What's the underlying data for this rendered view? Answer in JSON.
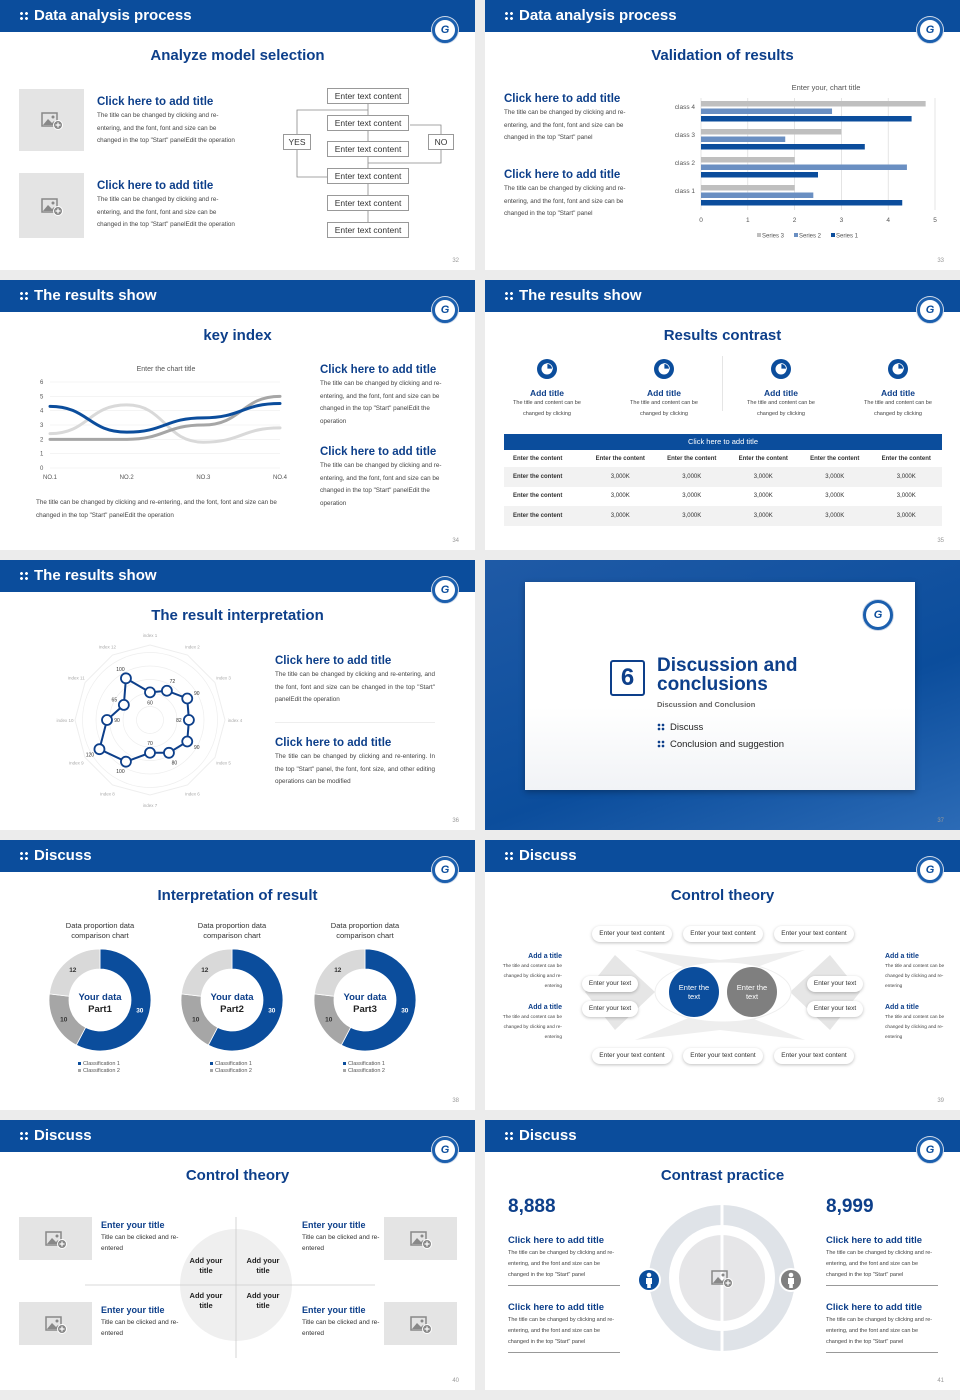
{
  "colors": {
    "brand": "#0b4d9c",
    "title": "#0d3f8a",
    "gray": "#bfbfbf",
    "midgray": "#8a8a8a",
    "series2": "#6a8fc2"
  },
  "logo_text": "G",
  "slides": [
    {
      "header": "Data analysis process",
      "title": "Analyze model selection",
      "page": "32",
      "items": [
        {
          "title": "Click here to add title",
          "text": "The title can be changed by clicking and re-entering, and the font, font and size can be changed in the top \"Start\" panelEdit the operation"
        },
        {
          "title": "Click here to add title",
          "text": "The title can be changed by clicking and re-entering, and the font, font and size can be changed in the top \"Start\" panelEdit the operation"
        }
      ],
      "flow": {
        "boxes": [
          "Enter text content",
          "Enter text content",
          "Enter text content",
          "Enter text content",
          "Enter text content",
          "Enter text content"
        ],
        "yes": "YES",
        "no": "NO"
      }
    },
    {
      "header": "Data analysis process",
      "title": "Validation of results",
      "page": "33",
      "items": [
        {
          "title": "Click here to add title",
          "text": "The title can be changed by clicking and re-entering, and the font, font and size can be changed in the top \"Start\" panel"
        },
        {
          "title": "Click here to add title",
          "text": "The title can be changed by clicking and re-entering, and the font, font and size can be changed in the top \"Start\" panel"
        }
      ]
    },
    {
      "header": "The results show",
      "title": "key index",
      "page": "34",
      "caption": "The title can be changed by clicking and re-entering, and the font, font and size can be changed in the top \"Start\" panelEdit the operation",
      "items": [
        {
          "title": "Click here to add title",
          "text": "The title can be changed by clicking and re-entering, and the font, font and size can be changed in the top \"Start\" panelEdit the operation"
        },
        {
          "title": "Click here to add title",
          "text": "The title can be changed by clicking and re-entering, and the font, font and size can be changed in the top \"Start\" panelEdit the operation"
        }
      ]
    },
    {
      "header": "The results show",
      "title": "Results contrast",
      "page": "35",
      "features": [
        {
          "title": "Add title",
          "text": "The title and content can be changed by clicking"
        },
        {
          "title": "Add title",
          "text": "The title and content can be changed by clicking"
        },
        {
          "title": "Add title",
          "text": "The title and content can be changed by clicking"
        },
        {
          "title": "Add title",
          "text": "The title and content can be changed by clicking"
        }
      ],
      "table": {
        "title": "Click here to add title",
        "header": [
          "Enter the content",
          "Enter the content",
          "Enter the content",
          "Enter the content",
          "Enter the content",
          "Enter the content"
        ],
        "rows": [
          [
            "Enter the content",
            "3,000K",
            "3,000K",
            "3,000K",
            "3,000K",
            "3,000K"
          ],
          [
            "Enter the content",
            "3,000K",
            "3,000K",
            "3,000K",
            "3,000K",
            "3,000K"
          ],
          [
            "Enter the content",
            "3,000K",
            "3,000K",
            "3,000K",
            "3,000K",
            "3,000K"
          ]
        ]
      }
    },
    {
      "header": "The results show",
      "title": "The result interpretation",
      "page": "36",
      "items": [
        {
          "title": "Click here to add title",
          "text": "The title can be changed by clicking and re-entering, and the font, font and size can be changed in the top \"Start\" panelEdit the operation"
        },
        {
          "title": "Click here to add title",
          "text": "The title can be changed by clicking and re-entering. In the top \"Start\" panel, the font, font size, and other editing operations can be modified"
        }
      ]
    },
    {
      "number": "6",
      "title": "Discussion and conclusions",
      "subtitle": "Discussion and Conclusion",
      "list": [
        "Discuss",
        "Conclusion and suggestion"
      ],
      "page": "37"
    },
    {
      "header": "Discuss",
      "title": "Interpretation of result",
      "page": "38"
    },
    {
      "header": "Discuss",
      "title": "Control theory",
      "page": "39",
      "top": [
        "Enter your text content",
        "Enter your text content",
        "Enter your text content"
      ],
      "bottom": [
        "Enter your text content",
        "Enter your text content",
        "Enter your text content"
      ],
      "left_pills": [
        "Enter your text",
        "Enter your text"
      ],
      "right_pills": [
        "Enter your text",
        "Enter your text"
      ],
      "circles": [
        "Enter the text",
        "Enter the text"
      ],
      "left_items": [
        {
          "title": "Add a title",
          "text": "The title and content can be changed by clicking and re-entering"
        },
        {
          "title": "Add a title",
          "text": "The title and content can be changed by clicking and re-entering"
        }
      ],
      "right_items": [
        {
          "title": "Add a title",
          "text": "The title and content can be changed by clicking and re-entering"
        },
        {
          "title": "Add a title",
          "text": "The title and content can be changed by clicking and re-entering"
        }
      ]
    },
    {
      "header": "Discuss",
      "title": "Control theory",
      "page": "40",
      "items": [
        {
          "title": "Enter your title",
          "text": "Title can be clicked and re-entered"
        },
        {
          "title": "Enter your title",
          "text": "Title can be clicked and re-entered"
        },
        {
          "title": "Enter your title",
          "text": "Title can be clicked and re-entered"
        },
        {
          "title": "Enter your title",
          "text": "Title can be clicked and re-entered"
        }
      ],
      "quadrants": [
        "Add your title",
        "Add your title",
        "Add your title",
        "Add your title"
      ]
    },
    {
      "header": "Discuss",
      "title": "Contrast practice",
      "page": "41",
      "numbers": [
        "8,888",
        "8,999"
      ],
      "items": [
        {
          "title": "Click here to add title",
          "text": "The title can be changed by clicking and re-entering, and the font and size can be changed in the top \"Start\" panel"
        },
        {
          "title": "Click here to add title",
          "text": "The title can be changed by clicking and re-entering, and the font and size can be changed in the top \"Start\" panel"
        },
        {
          "title": "Click here to add title",
          "text": "The title can be changed by clicking and re-entering, and the font and size can be changed in the top \"Start\" panel"
        },
        {
          "title": "Click here to add title",
          "text": "The title can be changed by clicking and re-entering, and the font and size can be changed in the top \"Start\" panel"
        }
      ]
    }
  ],
  "chart_data": [
    {
      "type": "bar",
      "orientation": "horizontal",
      "title": "Enter your, chart title",
      "categories": [
        "class 1",
        "class 2",
        "class 3",
        "class 4"
      ],
      "series": [
        {
          "name": "Series 3",
          "values": [
            2,
            2,
            3,
            4.8
          ],
          "color": "#bfbfbf"
        },
        {
          "name": "Series 2",
          "values": [
            2.4,
            4.4,
            1.8,
            2.8
          ],
          "color": "#6a8fc2"
        },
        {
          "name": "Series 1",
          "values": [
            4.3,
            2.5,
            3.5,
            4.5
          ],
          "color": "#0b4d9c"
        }
      ],
      "xlim": [
        0,
        5
      ],
      "ticks": [
        "0",
        "1",
        "2",
        "3",
        "4",
        "5"
      ],
      "grid": true,
      "legend": "bottom"
    },
    {
      "type": "line",
      "title": "Enter the chart title",
      "categories": [
        "NO.1",
        "NO.2",
        "NO.3",
        "NO.4"
      ],
      "series": [
        {
          "values": [
            4.3,
            2.5,
            3.5,
            4.5
          ],
          "color": "#0b4d9c"
        },
        {
          "values": [
            2,
            2,
            3,
            5
          ],
          "color": "#a6a6a6"
        },
        {
          "values": [
            2.4,
            4.4,
            1.8,
            2.8
          ],
          "color": "#d9d9d9"
        }
      ],
      "ylim": [
        0,
        6
      ],
      "ticks": [
        "0",
        "1",
        "2",
        "3",
        "4",
        "5",
        "6"
      ],
      "grid": true
    },
    {
      "type": "radar",
      "axes": [
        "index 1",
        "index 2",
        "index 3",
        "index 4",
        "index 5",
        "index 6",
        "index 7",
        "index 8",
        "index 9",
        "index 10",
        "index 11",
        "index 12"
      ],
      "values": [
        60,
        72,
        90,
        82,
        90,
        80,
        70,
        100,
        120,
        90,
        65,
        100
      ],
      "color": "#0d3f8a"
    },
    {
      "type": "pie",
      "title": "Data proportion data comparison chart",
      "center": [
        "Your data",
        "Part1"
      ],
      "values": [
        30,
        10,
        12
      ],
      "labels": [
        "30",
        "10",
        "12"
      ],
      "colors": [
        "#0b4d9c",
        "#a6a6a6",
        "#d9d9d9"
      ],
      "legend": [
        "Classification 1",
        "Classification 2"
      ]
    },
    {
      "type": "pie",
      "title": "Data proportion data comparison chart",
      "center": [
        "Your data",
        "Part2"
      ],
      "values": [
        30,
        10,
        12
      ],
      "labels": [
        "30",
        "10",
        "12"
      ],
      "colors": [
        "#0b4d9c",
        "#a6a6a6",
        "#d9d9d9"
      ],
      "legend": [
        "Classification 1",
        "Classification 2"
      ]
    },
    {
      "type": "pie",
      "title": "Data proportion data comparison chart",
      "center": [
        "Your data",
        "Part3"
      ],
      "values": [
        30,
        10,
        12
      ],
      "labels": [
        "30",
        "10",
        "12"
      ],
      "colors": [
        "#0b4d9c",
        "#a6a6a6",
        "#d9d9d9"
      ],
      "legend": [
        "Classification 1",
        "Classification 2"
      ]
    }
  ]
}
